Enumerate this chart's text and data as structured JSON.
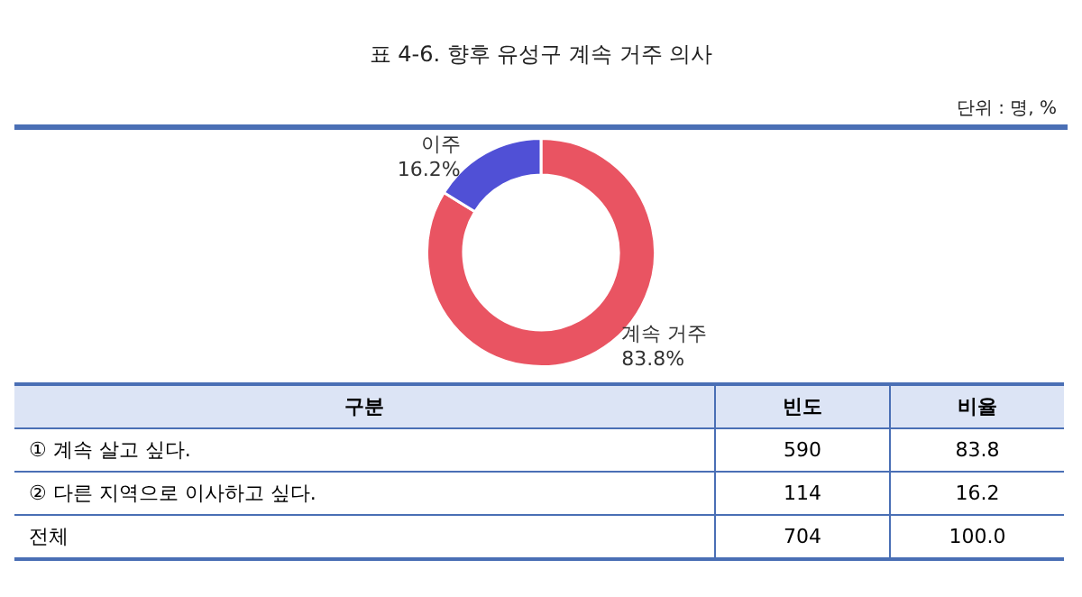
{
  "chart_data": [
    {
      "type": "donut",
      "title": "표 4-6. 향후 유성구 계속 거주 의사",
      "annotations": [
        "단위 : 명, %"
      ],
      "categories": [
        "계속 거주",
        "이주"
      ],
      "values": [
        83.8,
        16.2
      ],
      "colors": [
        "#e95462",
        "#5050d6"
      ],
      "value_labels": [
        "83.8%",
        "16.2%"
      ]
    },
    {
      "type": "other",
      "data_labels": true,
      "xlabel": "구분",
      "categories": [
        "① 계속 살고 싶다.",
        "② 다른 지역으로 이사하고 싶다.",
        "전체"
      ],
      "series": [
        {
          "name": "빈도",
          "values": [
            590,
            114,
            704
          ]
        },
        {
          "name": "비율",
          "values": [
            83.8,
            16.2,
            100.0
          ],
          "value_labels": [
            "83.8",
            "16.2",
            "100.0"
          ]
        }
      ]
    }
  ]
}
